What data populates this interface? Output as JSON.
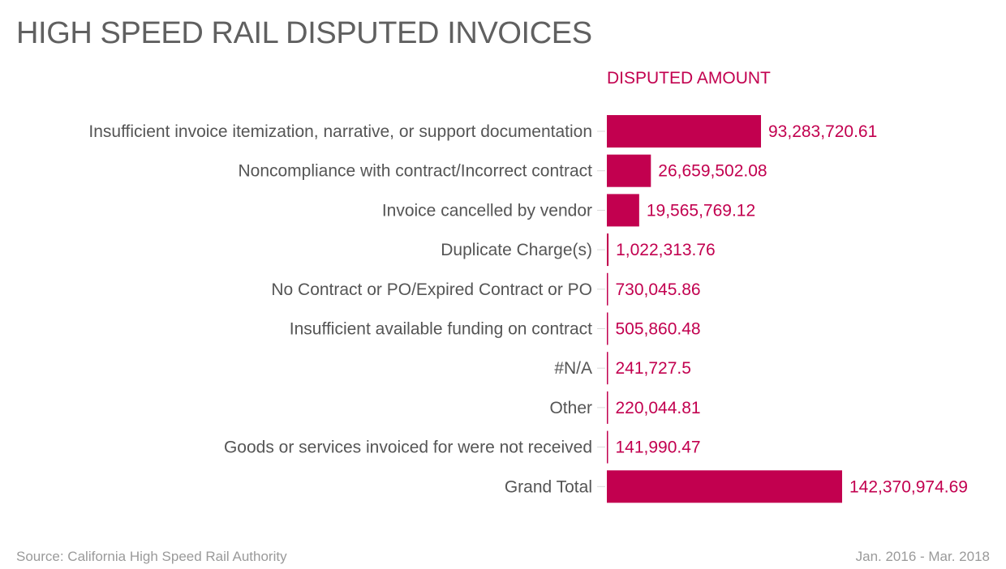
{
  "header": {
    "title": "HIGH SPEED RAIL DISPUTED INVOICES",
    "column_header": "DISPUTED AMOUNT"
  },
  "footer": {
    "source": "Source: California High Speed Rail Authority",
    "period": "Jan. 2016 - Mar. 2018"
  },
  "colors": {
    "bar": "#c2004f",
    "value_text": "#c2004f",
    "label_text": "#555555",
    "title_text": "#606060"
  },
  "chart_data": {
    "type": "bar",
    "orientation": "horizontal",
    "title": "HIGH SPEED RAIL DISPUTED INVOICES",
    "series": [
      {
        "name": "DISPUTED AMOUNT",
        "values": [
          93283720.61,
          26659502.08,
          19565769.12,
          1022313.76,
          730045.86,
          505860.48,
          241727.5,
          220044.81,
          141990.47,
          142370974.69
        ]
      }
    ],
    "categories": [
      "Insufficient invoice itemization, narrative, or support documentation",
      "Noncompliance with contract/Incorrect contract",
      "Invoice cancelled by vendor",
      "Duplicate Charge(s)",
      "No Contract or PO/Expired Contract or PO",
      "Insufficient available funding on contract",
      "#N/A",
      "Other",
      "Goods or services invoiced for were not received",
      "Grand Total"
    ],
    "value_labels": [
      "93,283,720.61",
      "26,659,502.08",
      "19,565,769.12",
      "1,022,313.76",
      "730,045.86",
      "505,860.48",
      "241,727.5",
      "220,044.81",
      "141,990.47",
      "142,370,974.69"
    ],
    "xlim": [
      0,
      142370974.69
    ],
    "grid": false,
    "legend": "none"
  }
}
